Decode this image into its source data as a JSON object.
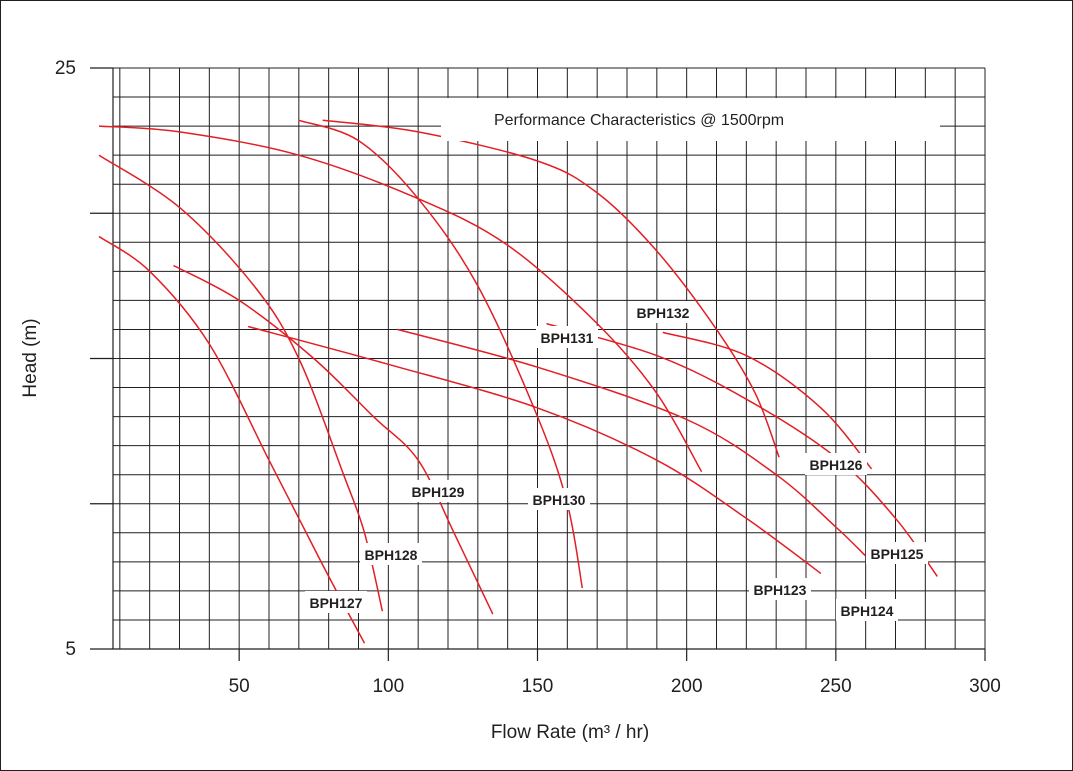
{
  "chart_data": {
    "type": "line",
    "title": "Performance Characteristics @ 1500rpm",
    "xlabel": "Flow Rate (m³ / hr)",
    "ylabel": "Head (m)",
    "xlim": [
      0,
      300
    ],
    "ylim": [
      5,
      25
    ],
    "x_ticks": [
      50,
      100,
      150,
      200,
      250,
      300
    ],
    "y_ticks": [
      5,
      25
    ],
    "grid": true,
    "series_color": "#e31e24",
    "series": [
      {
        "name": "BPH127",
        "points": [
          [
            3,
            19.2
          ],
          [
            20,
            18
          ],
          [
            40,
            15.5
          ],
          [
            60,
            11.5
          ],
          [
            70,
            9.5
          ],
          [
            80,
            7.5
          ],
          [
            92,
            5.2
          ]
        ]
      },
      {
        "name": "BPH128",
        "points": [
          [
            3,
            22
          ],
          [
            30,
            20.2
          ],
          [
            55,
            17.5
          ],
          [
            70,
            15
          ],
          [
            85,
            11
          ],
          [
            92,
            9
          ],
          [
            98,
            6.3
          ]
        ]
      },
      {
        "name": "BPH129",
        "points": [
          [
            28,
            18.2
          ],
          [
            50,
            17
          ],
          [
            75,
            15
          ],
          [
            95,
            13
          ],
          [
            110,
            11.5
          ],
          [
            122,
            9
          ],
          [
            135,
            6.2
          ]
        ]
      },
      {
        "name": "BPH130",
        "points": [
          [
            70,
            23.2
          ],
          [
            90,
            22.5
          ],
          [
            110,
            20.5
          ],
          [
            130,
            17.5
          ],
          [
            150,
            13
          ],
          [
            160,
            10
          ],
          [
            165,
            7.1
          ]
        ]
      },
      {
        "name": "BPH131",
        "points": [
          [
            3,
            23
          ],
          [
            30,
            22.8
          ],
          [
            70,
            22
          ],
          [
            110,
            20.5
          ],
          [
            140,
            18.9
          ],
          [
            170,
            16.2
          ],
          [
            190,
            13.8
          ],
          [
            205,
            11.1
          ]
        ]
      },
      {
        "name": "BPH132",
        "points": [
          [
            78,
            23.2
          ],
          [
            110,
            22.8
          ],
          [
            150,
            21.8
          ],
          [
            170,
            20.7
          ],
          [
            190,
            18.7
          ],
          [
            210,
            16
          ],
          [
            223,
            13.8
          ],
          [
            231,
            11.6
          ]
        ]
      },
      {
        "name": "BPH123",
        "points": [
          [
            53,
            16.1
          ],
          [
            100,
            14.8
          ],
          [
            150,
            13.3
          ],
          [
            190,
            11.5
          ],
          [
            220,
            9.5
          ],
          [
            245,
            7.6
          ]
        ]
      },
      {
        "name": "BPH124",
        "points": [
          [
            103,
            16
          ],
          [
            150,
            14.7
          ],
          [
            200,
            12.9
          ],
          [
            230,
            11
          ],
          [
            250,
            9.2
          ],
          [
            260,
            8.2
          ]
        ]
      },
      {
        "name": "BPH125",
        "points": [
          [
            153,
            16.2
          ],
          [
            190,
            15.1
          ],
          [
            220,
            13.6
          ],
          [
            250,
            11.6
          ],
          [
            270,
            9.5
          ],
          [
            284,
            7.5
          ]
        ]
      },
      {
        "name": "BPH126",
        "points": [
          [
            192,
            15.9
          ],
          [
            220,
            15.1
          ],
          [
            245,
            13.3
          ],
          [
            262,
            11.2
          ]
        ]
      }
    ]
  }
}
